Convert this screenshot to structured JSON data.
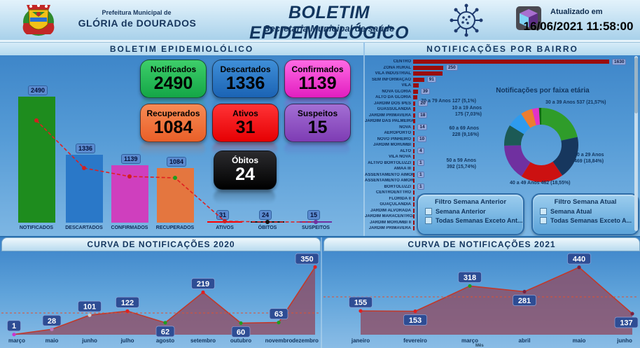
{
  "header": {
    "org_small": "Prefeitura Municipal de",
    "org_name": "GLÓRIA de DOURADOS",
    "title": "BOLETIM EPIDEMIOLÓGICO",
    "subtitle": "Secretaria Municipal de saúde",
    "updated_label": "Atualizado em",
    "updated_value": "16/06/2021 11:58:00"
  },
  "left_panel": {
    "title": "BOLETIM EPIDEMIOLÓLICO",
    "cards": [
      {
        "label": "Notificados",
        "value": "2490",
        "color": "#14a647",
        "color2": "#3ecf6a",
        "text": "#000"
      },
      {
        "label": "Descartados",
        "value": "1336",
        "color": "#1b63b4",
        "color2": "#3f8fd8",
        "text": "#000"
      },
      {
        "label": "Confirmados",
        "value": "1139",
        "color": "#e21ec0",
        "color2": "#ff6ae4",
        "text": "#000"
      },
      {
        "label": "Recuperados",
        "value": "1084",
        "color": "#e95f28",
        "color2": "#f78b55",
        "text": "#000"
      },
      {
        "label": "Ativos",
        "value": "31",
        "color": "#e60003",
        "color2": "#ff3336",
        "text": "#000"
      },
      {
        "label": "Suspeitos",
        "value": "15",
        "color": "#7e3cb4",
        "color2": "#a36fd4",
        "text": "#000"
      },
      {
        "label": "Óbitos",
        "value": "24",
        "color": "#000000",
        "color2": "#2b2b2e",
        "text": "#ffffff"
      }
    ]
  },
  "right_panel": {
    "title": "NOTIFICAÇÕES POR BAIRRO",
    "donut_title": "Notificações por faixa etária",
    "filters": [
      {
        "title": "Filtro Semana Anterior",
        "options": [
          "Semana Anterior",
          "Todas Semanas Exceto Ant..."
        ]
      },
      {
        "title": "Filtro Semana Atual",
        "options": [
          "Semana Atual",
          "Todas Semanas Exceto A..."
        ]
      }
    ]
  },
  "bottom": {
    "left_title": "CURVA DE NOTIFICAÇÕES 2020",
    "right_title": "CURVA DE NOTIFICAÇÕES 2021",
    "x_axis_label": "Mês"
  },
  "chart_data": [
    {
      "type": "bar",
      "title": "BOLETIM EPIDEMIOLÓLICO",
      "categories": [
        "NOTIFICADOS",
        "DESCARTADOS",
        "CONFIRMADOS",
        "RECUPERADOS",
        "ATIVOS",
        "ÓBITOS",
        "SUSPEITOS"
      ],
      "values": [
        2490,
        1336,
        1139,
        1084,
        31,
        24,
        15
      ],
      "bar_colors": [
        "#1e8c1e",
        "#2a78c8",
        "#cf3fbe",
        "#e4763f",
        "#ff0000",
        "#151515",
        "#7030a0"
      ],
      "trend_line_color": "#e02020",
      "ylim": [
        0,
        2490
      ]
    },
    {
      "type": "bar",
      "orientation": "horizontal",
      "title": "NOTIFICAÇÕES POR BAIRRO",
      "bar_color": "#9a0d0d",
      "xlim": [
        0,
        1630
      ],
      "rows": [
        {
          "name": "CENTRO",
          "value": 1630,
          "label": true
        },
        {
          "name": "ZONA RURAL",
          "value": 250,
          "label": true
        },
        {
          "name": "VILA INDUSTRIAL",
          "value": 245,
          "label": false
        },
        {
          "name": "SEM INFORMAÇÃO",
          "value": 91,
          "label": true
        },
        {
          "name": "VILA",
          "value": 45,
          "label": false
        },
        {
          "name": "NOVA GLORIA",
          "value": 39,
          "label": true
        },
        {
          "name": "ALTO DA GLORIA",
          "value": 35,
          "label": false
        },
        {
          "name": "JARDIM DOS IPÊS",
          "value": 20,
          "label": true
        },
        {
          "name": "GUASSULANDIA",
          "value": 19,
          "label": false
        },
        {
          "name": "JARDIM PRIMAVERA",
          "value": 18,
          "label": true
        },
        {
          "name": "JARDIM DAS PALMEIRAS",
          "value": 16,
          "label": false
        },
        {
          "name": "NOVA",
          "value": 14,
          "label": true
        },
        {
          "name": "AEROPORTO",
          "value": 11,
          "label": false
        },
        {
          "name": "NOVO PINHEIRO",
          "value": 10,
          "label": true
        },
        {
          "name": "JARDIM MORUMBI",
          "value": 6,
          "label": false
        },
        {
          "name": "ALTO",
          "value": 4,
          "label": true
        },
        {
          "name": "VILA NOVA",
          "value": 3,
          "label": false
        },
        {
          "name": "ALTIVO BORTOLUZZI",
          "value": 1,
          "label": true
        },
        {
          "name": "AMAA III",
          "value": 1,
          "label": false
        },
        {
          "name": "ASSENTAMENTO AIMORE",
          "value": 1,
          "label": true
        },
        {
          "name": "ASSENTAMENTO AMORE",
          "value": 1,
          "label": false
        },
        {
          "name": "BORTOLUZZI",
          "value": 1,
          "label": true
        },
        {
          "name": "CENTROENTTRO",
          "value": 1,
          "label": false
        },
        {
          "name": "FLORIDA II",
          "value": 1,
          "label": true
        },
        {
          "name": "GUAÇULANDIA",
          "value": 1,
          "label": false
        },
        {
          "name": "JARDIM ALVORADA",
          "value": 1,
          "label": true
        },
        {
          "name": "JARDIM MARACENTROANA",
          "value": 1,
          "label": false
        },
        {
          "name": "JARDIM MORUMBI II",
          "value": 1,
          "label": true
        },
        {
          "name": "JARDIM PRIMAVERA",
          "value": 1,
          "label": false
        }
      ]
    },
    {
      "type": "pie",
      "title": "Notificações por faixa etária",
      "total": 2490,
      "slices": [
        {
          "name": "30 a 39 Anos",
          "value": 537,
          "pct": "21,57%",
          "color": "#2f9c2a",
          "label_lines": [
            "30 a 39 Anos 537 (21,57%)"
          ]
        },
        {
          "name": "20 a 29 Anos",
          "value": 469,
          "pct": "18,84%",
          "color": "#17375e",
          "label_lines": [
            "20 a 29 Anos",
            "469 (18,84%)"
          ]
        },
        {
          "name": "40 a 49 Anos",
          "value": 462,
          "pct": "18,55%",
          "color": "#cc1111",
          "label_lines": [
            "40 a 49 Anos 462 (18,55%)"
          ]
        },
        {
          "name": "50 a 59 Anos",
          "value": 392,
          "pct": "15,74%",
          "color": "#7030a0",
          "label_lines": [
            "50 a 59 Anos",
            "392 (15,74%)"
          ]
        },
        {
          "name": "60 a 69 Anos",
          "value": 228,
          "pct": "9,16%",
          "color": "#1c5a55",
          "label_lines": [
            "60 a 69 Anos",
            "228 (9,16%)"
          ]
        },
        {
          "name": "10 a 19 Anos",
          "value": 175,
          "pct": "7,03%",
          "color": "#2e9bee",
          "label_lines": [
            "10 a 19 Anos",
            "175 (7,03%)"
          ]
        },
        {
          "name": "70 a 79 Anos",
          "value": 127,
          "pct": "5,1%",
          "color": "#ed7d31",
          "label_lines": [
            "70 a 79 Anos 127 (5,1%)"
          ]
        },
        {
          "name": "",
          "value": 75,
          "pct": "",
          "color": "#e332c8",
          "label_lines": null
        },
        {
          "name": "",
          "value": 25,
          "pct": "",
          "color": "#0f6b12",
          "label_lines": null
        }
      ]
    },
    {
      "type": "area",
      "title": "CURVA DE NOTIFICAÇÕES 2020",
      "x": [
        "março",
        "maio",
        "junho",
        "julho",
        "agosto",
        "setembro",
        "outubro",
        "novembro",
        "dezembro"
      ],
      "values": [
        1,
        28,
        101,
        122,
        62,
        219,
        60,
        63,
        350
      ],
      "avg_line": 112,
      "area_color": "#8d4a63",
      "line_color": "#c0392b",
      "ylim": [
        0,
        380
      ]
    },
    {
      "type": "area",
      "title": "CURVA DE NOTIFICAÇÕES 2021",
      "x": [
        "janeiro",
        "fevereiro",
        "março",
        "abril",
        "maio",
        "junho"
      ],
      "values": [
        155,
        153,
        318,
        281,
        440,
        137
      ],
      "avg_line": 247,
      "area_color": "#8d4a63",
      "line_color": "#c0392b",
      "xlabel": "Mês",
      "ylim": [
        0,
        480
      ]
    }
  ]
}
